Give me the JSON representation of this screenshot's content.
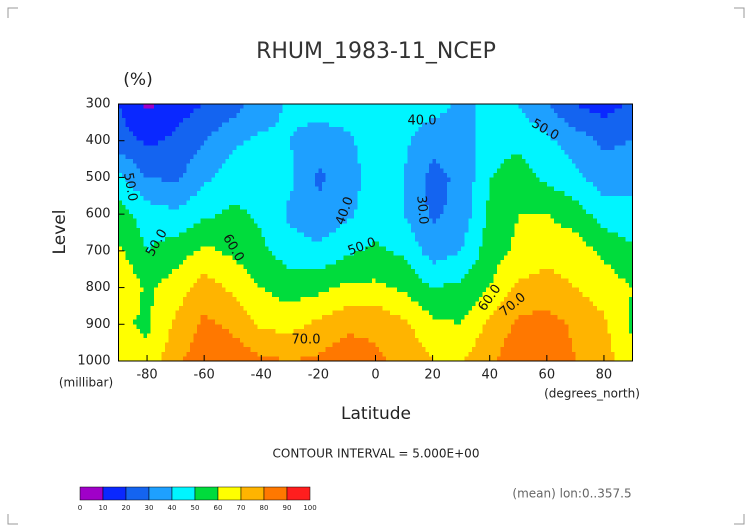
{
  "chart_data": {
    "type": "contour",
    "title": "RHUM_1983-11_NCEP",
    "unit": "(%)",
    "y_label": "Level",
    "y_unit": "(millibar)",
    "x_label": "Latitude",
    "x_unit": "(degrees_north)",
    "footnote": "CONTOUR INTERVAL = 5.000E+00",
    "annotation": "(mean) lon:0..357.5",
    "x": [
      -90,
      -80,
      -70,
      -60,
      -50,
      -40,
      -30,
      -20,
      -10,
      0,
      10,
      20,
      30,
      40,
      50,
      60,
      70,
      80,
      90
    ],
    "y": [
      300,
      400,
      500,
      600,
      700,
      800,
      900,
      1000
    ],
    "z": [
      [
        20,
        8,
        15,
        20,
        25,
        35,
        42,
        45,
        45,
        45,
        45,
        45,
        38,
        42,
        40,
        30,
        20,
        15,
        22
      ],
      [
        25,
        18,
        22,
        30,
        38,
        42,
        40,
        35,
        38,
        45,
        42,
        33,
        35,
        45,
        48,
        42,
        35,
        28,
        30
      ],
      [
        42,
        30,
        28,
        38,
        45,
        50,
        42,
        28,
        35,
        45,
        40,
        27,
        32,
        50,
        55,
        48,
        42,
        35,
        38
      ],
      [
        55,
        45,
        42,
        48,
        52,
        48,
        38,
        33,
        38,
        45,
        40,
        28,
        33,
        52,
        60,
        60,
        55,
        45,
        42
      ],
      [
        62,
        50,
        55,
        62,
        58,
        52,
        45,
        42,
        48,
        52,
        48,
        35,
        40,
        55,
        62,
        67,
        65,
        58,
        52
      ],
      [
        70,
        58,
        65,
        75,
        68,
        60,
        55,
        57,
        62,
        62,
        58,
        50,
        52,
        60,
        72,
        74,
        70,
        65,
        60
      ],
      [
        62,
        58,
        72,
        82,
        78,
        68,
        67,
        72,
        78,
        78,
        72,
        62,
        60,
        72,
        82,
        84,
        78,
        72,
        58
      ],
      [
        68,
        62,
        78,
        86,
        86,
        82,
        80,
        82,
        85,
        82,
        78,
        70,
        70,
        78,
        87,
        86,
        80,
        75,
        62
      ]
    ],
    "xlim": [
      -90,
      90
    ],
    "ylim": [
      1000,
      300
    ],
    "xticks": [
      -80,
      -60,
      -40,
      -20,
      0,
      20,
      40,
      60,
      80
    ],
    "yticks": [
      300,
      400,
      500,
      600,
      700,
      800,
      900,
      1000
    ],
    "levels": [
      0,
      10,
      20,
      30,
      40,
      50,
      60,
      70,
      80,
      90,
      100
    ],
    "colors": [
      "#a000c8",
      "#0a28ff",
      "#1464f0",
      "#1ea0ff",
      "#00f5ff",
      "#00dc3c",
      "#ffff00",
      "#ffb400",
      "#ff7800",
      "#ff1e1e"
    ],
    "contour_labels": [
      {
        "value": 40,
        "label": "40.0"
      },
      {
        "value": 50,
        "label": "50.0"
      },
      {
        "value": 50,
        "label": "50.0"
      },
      {
        "value": 30,
        "label": "30.0"
      },
      {
        "value": 40,
        "label": "40.0"
      },
      {
        "value": 50,
        "label": "50.0"
      },
      {
        "value": 50,
        "label": "50.0"
      },
      {
        "value": 60,
        "label": "60.0"
      },
      {
        "value": 60,
        "label": "60.0"
      },
      {
        "value": 70,
        "label": "70.0"
      },
      {
        "value": 70,
        "label": "70.0"
      }
    ]
  }
}
